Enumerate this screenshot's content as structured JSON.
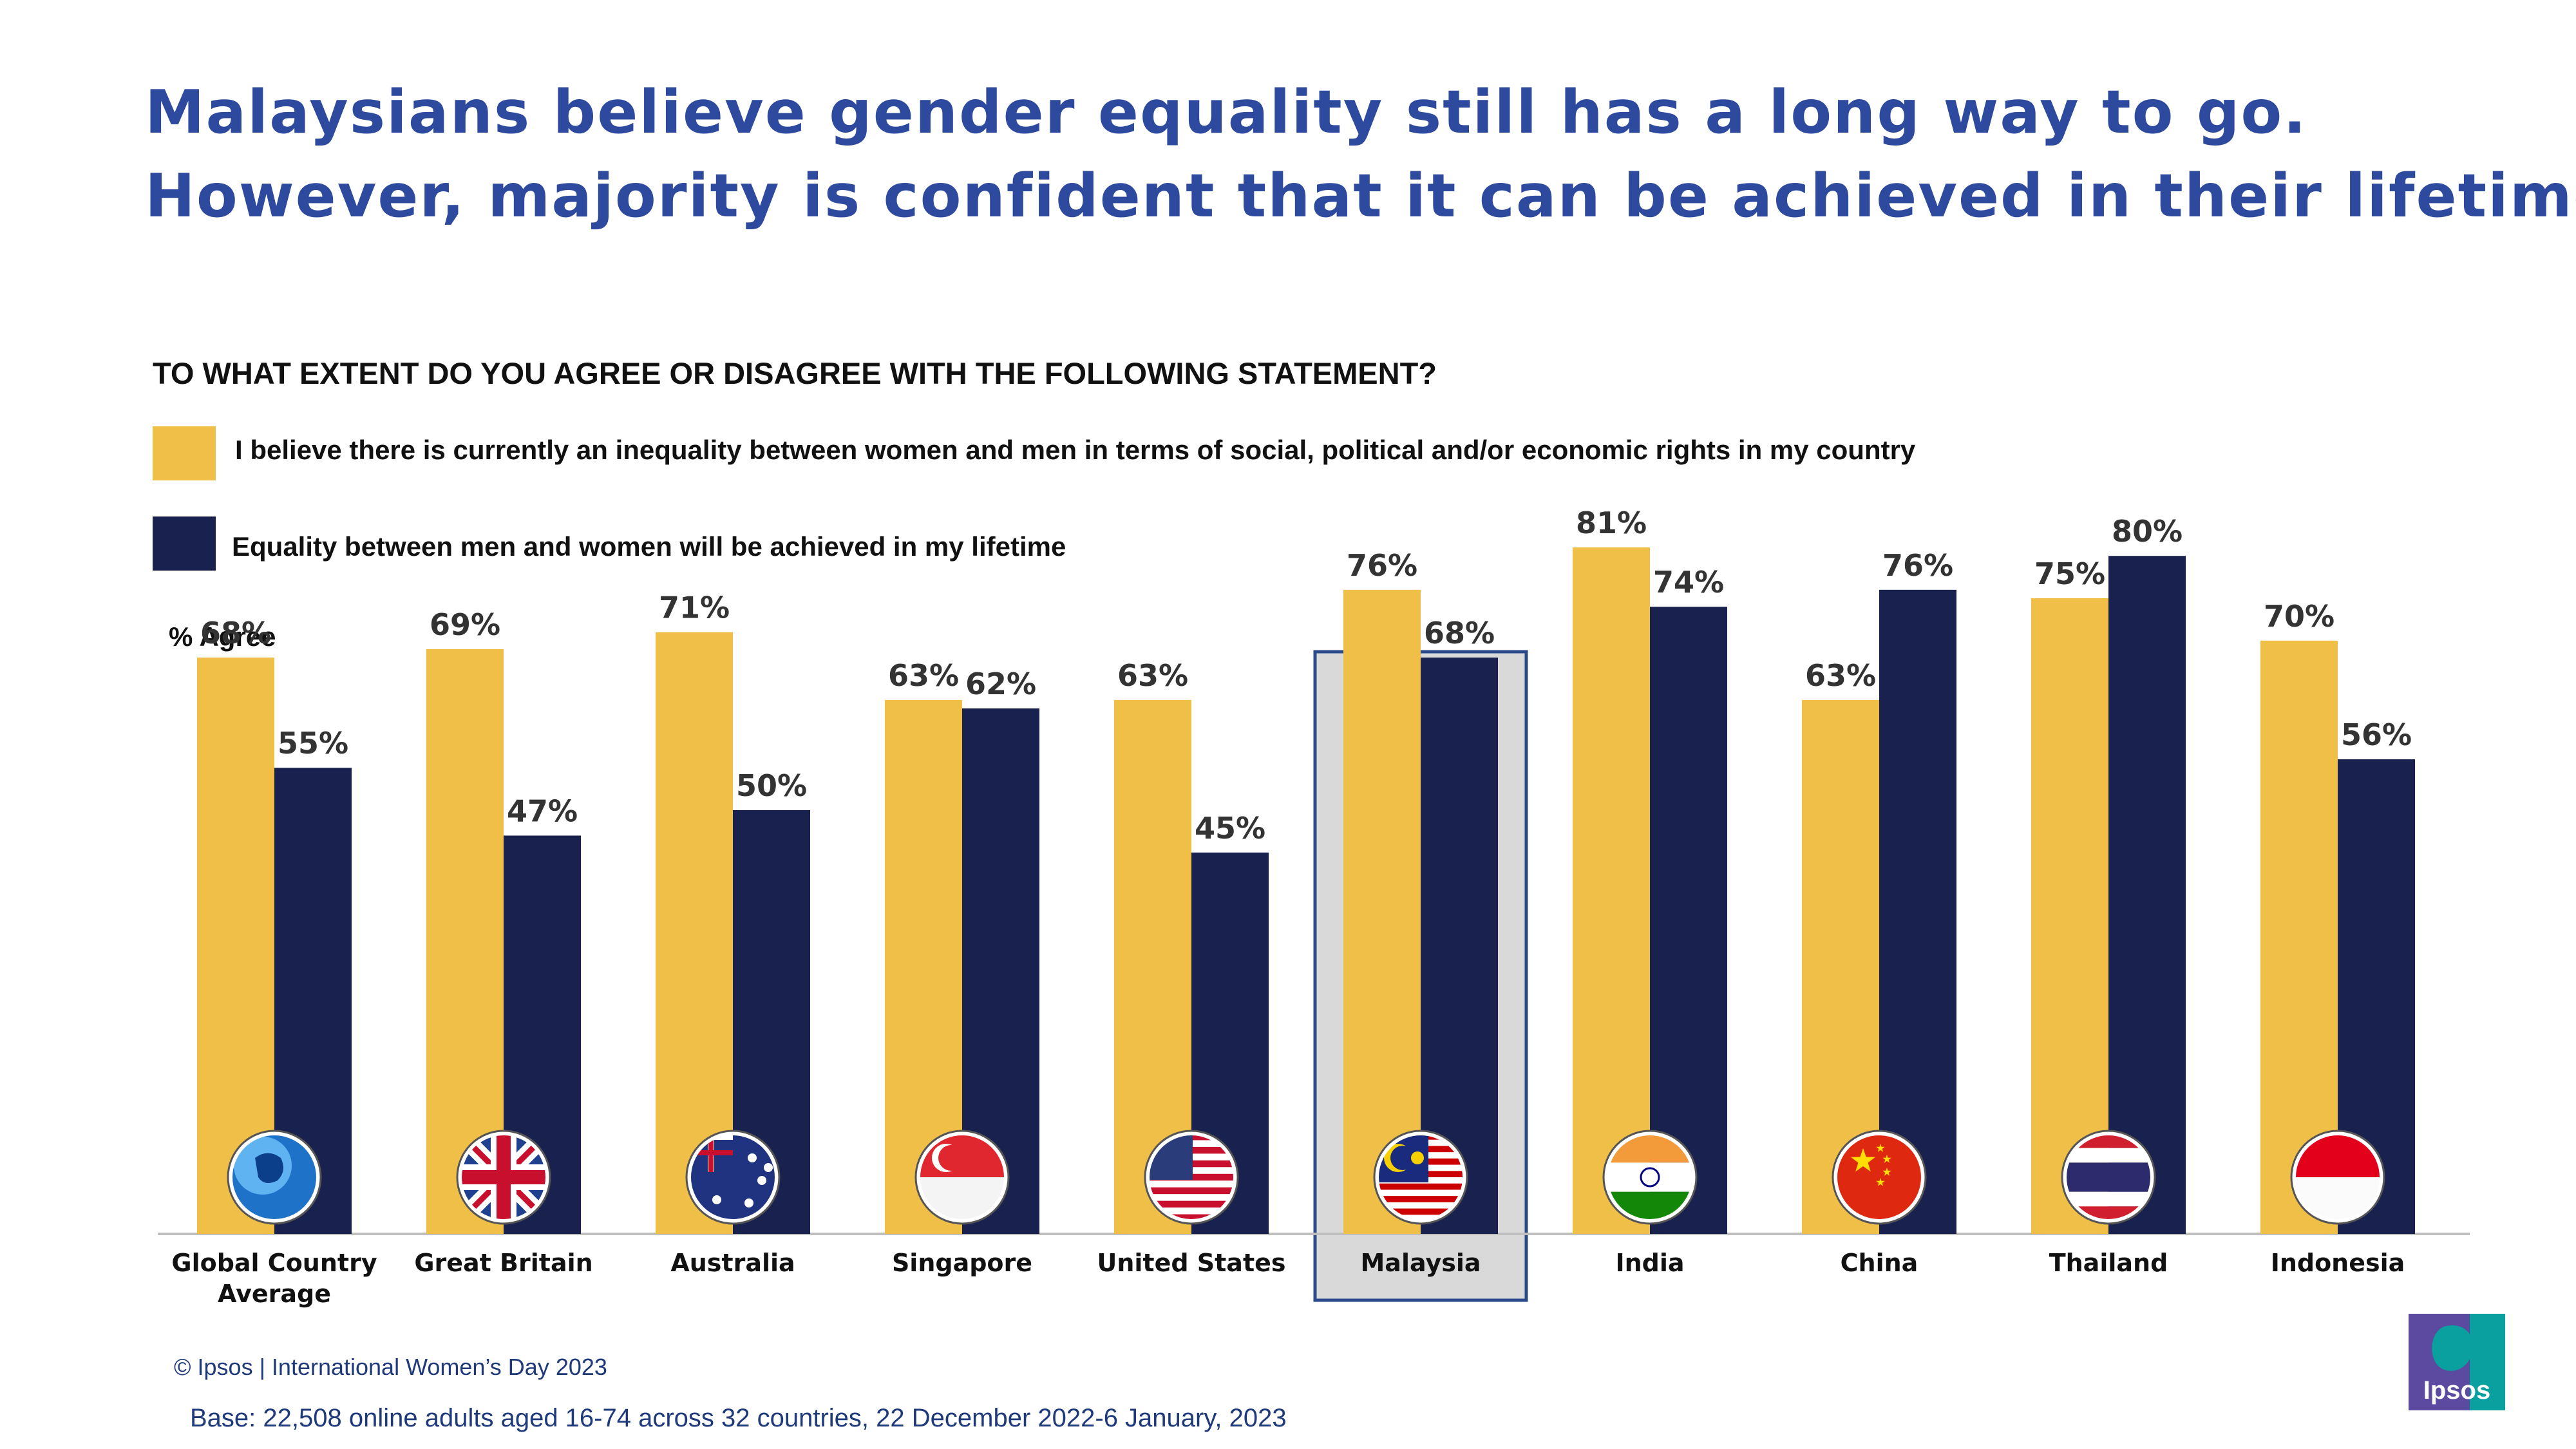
{
  "headline": {
    "line1": "Malaysians believe gender equality still has a long way to go.",
    "line2": "However, majority is confident that it can be achieved in their lifetime."
  },
  "colors": {
    "headline": "#2e4a9e",
    "inequality": "#f0bf48",
    "equality": "#19224e",
    "highlight_fill": "#d9d9d9",
    "highlight_border": "#2b4a8a",
    "label": "#333333"
  },
  "footer": {
    "copyright": "© Ipsos | International Women’s Day 2023",
    "base": "Base: 22,508 online adults aged 16-74 across 32 countries, 22 December 2022-6 January, 2023",
    "logo_text": "Ipsos"
  },
  "chart_data": {
    "type": "bar",
    "title": "TO WHAT EXTENT DO YOU AGREE OR DISAGREE WITH THE FOLLOWING STATEMENT?",
    "ylabel": "%  Agree",
    "xlabel": "",
    "ylim": [
      0,
      100
    ],
    "highlight": "Malaysia",
    "categories": [
      {
        "lines": [
          "Global Country",
          "Average"
        ],
        "flag": "globe-icon"
      },
      {
        "lines": [
          "Great Britain"
        ],
        "flag": "uk-flag-icon"
      },
      {
        "lines": [
          "Australia"
        ],
        "flag": "australia-flag-icon"
      },
      {
        "lines": [
          "Singapore"
        ],
        "flag": "singapore-flag-icon"
      },
      {
        "lines": [
          "United States"
        ],
        "flag": "us-flag-icon"
      },
      {
        "lines": [
          "Malaysia"
        ],
        "flag": "malaysia-flag-icon"
      },
      {
        "lines": [
          "India"
        ],
        "flag": "india-flag-icon"
      },
      {
        "lines": [
          "China"
        ],
        "flag": "china-flag-icon"
      },
      {
        "lines": [
          "Thailand"
        ],
        "flag": "thailand-flag-icon"
      },
      {
        "lines": [
          "Indonesia"
        ],
        "flag": "indonesia-flag-icon"
      }
    ],
    "series": [
      {
        "name": "I believe there is currently an inequality between women and men in terms of social, political and/or economic rights in my country",
        "values": [
          68,
          69,
          71,
          63,
          63,
          76,
          81,
          63,
          75,
          70
        ],
        "labels": [
          "68%",
          "69%",
          "71%",
          "63%",
          "63%",
          "76%",
          "81%",
          "63%",
          "75%",
          "70%"
        ]
      },
      {
        "name": "Equality between men and women will be achieved in my lifetime",
        "values": [
          55,
          47,
          50,
          62,
          45,
          68,
          74,
          76,
          80,
          56
        ],
        "labels": [
          "55%",
          "47%",
          "50%",
          "62%",
          "45%",
          "68%",
          "74%",
          "76%",
          "80%",
          "56%"
        ]
      }
    ]
  }
}
